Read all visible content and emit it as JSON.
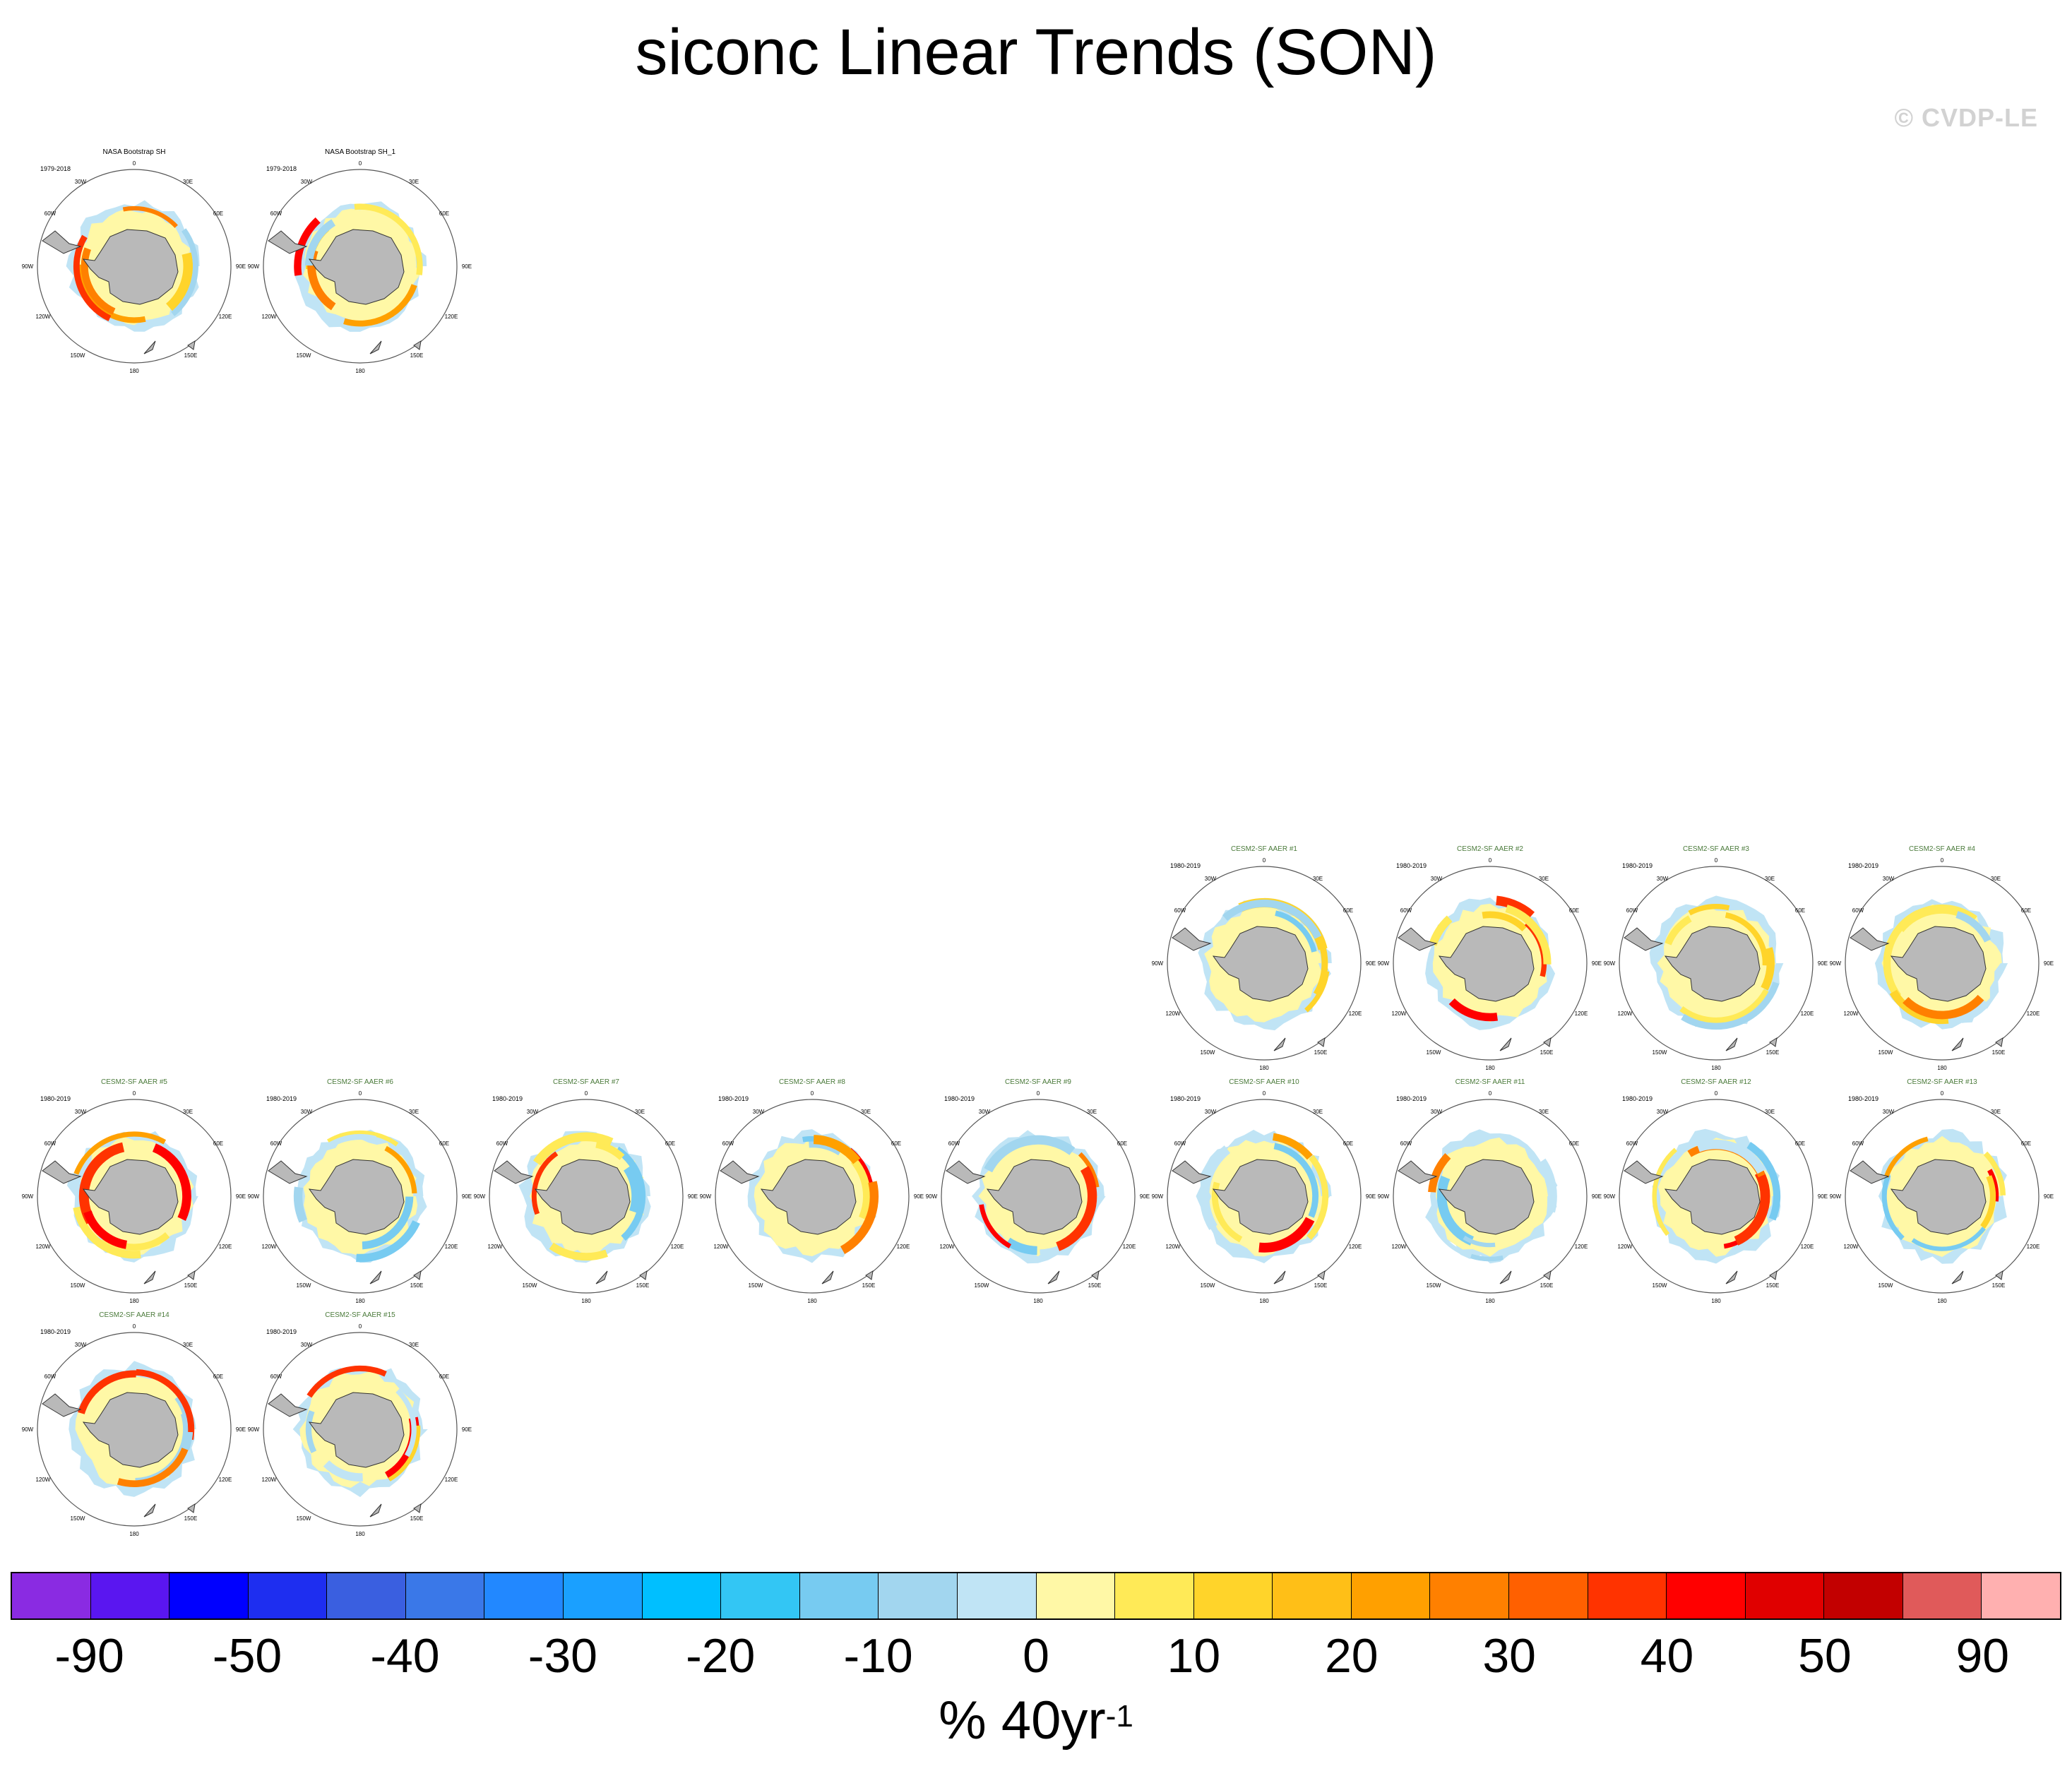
{
  "title": "siconc Linear Trends (SON)",
  "watermark": "© CVDP-LE",
  "units": {
    "main": "% 40yr",
    "exp": "-1"
  },
  "colorbar": {
    "colors": [
      "#8a2be2",
      "#5a16f0",
      "#0000ff",
      "#1e2ef0",
      "#3a5fe0",
      "#3a78e8",
      "#2288ff",
      "#1aa0ff",
      "#00bfff",
      "#33c6f4",
      "#77cbf1",
      "#a2d6ef",
      "#c0e4f5",
      "#fff8a6",
      "#ffea57",
      "#ffd42a",
      "#ffbf17",
      "#ffa000",
      "#ff8000",
      "#ff6000",
      "#ff3300",
      "#ff0000",
      "#e00000",
      "#c20000",
      "#e05a5a",
      "#ffb0b0"
    ],
    "labels": [
      "-90",
      "-50",
      "-40",
      "-30",
      "-20",
      "-10",
      "0",
      "10",
      "20",
      "30",
      "40",
      "50",
      "90"
    ]
  },
  "map_labels": {
    "top": "0",
    "upper_left": "30W",
    "upper_right": "30E",
    "left_upper": "60W",
    "right_upper": "60E",
    "left": "90W",
    "right": "90E",
    "left_lower": "120W",
    "right_lower": "120E",
    "bottom_left": "150W",
    "bottom_right": "150E",
    "bottom": "180"
  },
  "panels": [
    {
      "title": "NASA Bootstrap SH",
      "period": "1979-2018",
      "obs": true
    },
    {
      "title": "NASA Bootstrap SH_1",
      "period": "1979-2018",
      "obs": true
    },
    {
      "title": "CESM2-SF AAER #1",
      "period": "1980-2019"
    },
    {
      "title": "CESM2-SF AAER #2",
      "period": "1980-2019"
    },
    {
      "title": "CESM2-SF AAER #3",
      "period": "1980-2019"
    },
    {
      "title": "CESM2-SF AAER #4",
      "period": "1980-2019"
    },
    {
      "title": "CESM2-SF AAER #5",
      "period": "1980-2019"
    },
    {
      "title": "CESM2-SF AAER #6",
      "period": "1980-2019"
    },
    {
      "title": "CESM2-SF AAER #7",
      "period": "1980-2019"
    },
    {
      "title": "CESM2-SF AAER #8",
      "period": "1980-2019"
    },
    {
      "title": "CESM2-SF AAER #9",
      "period": "1980-2019"
    },
    {
      "title": "CESM2-SF AAER #10",
      "period": "1980-2019"
    },
    {
      "title": "CESM2-SF AAER #11",
      "period": "1980-2019"
    },
    {
      "title": "CESM2-SF AAER #12",
      "period": "1980-2019"
    },
    {
      "title": "CESM2-SF AAER #13",
      "period": "1980-2019"
    },
    {
      "title": "CESM2-SF AAER #14",
      "period": "1980-2019"
    },
    {
      "title": "CESM2-SF AAER #15",
      "period": "1980-2019"
    }
  ]
}
